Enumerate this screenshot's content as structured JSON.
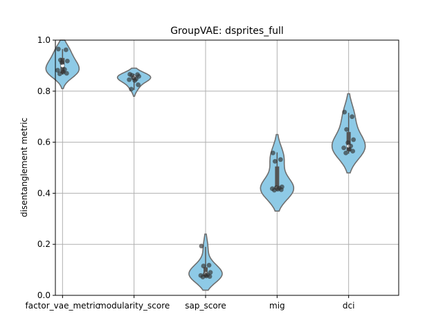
{
  "chart_data": {
    "type": "violin",
    "title": "GroupVAE: dsprites_full",
    "xlabel": "",
    "ylabel": "disentanglement metric",
    "ylim": [
      0.0,
      1.0
    ],
    "yticks": [
      0.0,
      0.2,
      0.4,
      0.6,
      0.8,
      1.0
    ],
    "ytick_labels": [
      "0.0",
      "0.2",
      "0.4",
      "0.6",
      "0.8",
      "1.0"
    ],
    "grid": true,
    "categories": [
      "factor_vae_metric",
      "modularity_score",
      "sap_score",
      "mig",
      "dci"
    ],
    "colors": {
      "violin_fill": "#8ecae6",
      "violin_edge": "#6e6e6e",
      "box": "#555555",
      "median": "#ffffff",
      "points": "#333333",
      "grid": "#b0b0b0"
    },
    "series": [
      {
        "category": "factor_vae_metric",
        "violin_range": [
          0.81,
          1.0
        ],
        "box": {
          "q1": 0.87,
          "median": 0.9,
          "q3": 0.93
        },
        "whiskers": [
          0.865,
          0.965
        ],
        "points": [
          0.965,
          0.962,
          0.922,
          0.918,
          0.912,
          0.885,
          0.882,
          0.875,
          0.87,
          0.868
        ]
      },
      {
        "category": "modularity_score",
        "violin_range": [
          0.78,
          0.89
        ],
        "box": {
          "q1": 0.845,
          "median": 0.855,
          "q3": 0.862
        },
        "whiskers": [
          0.805,
          0.868
        ],
        "points": [
          0.866,
          0.865,
          0.862,
          0.858,
          0.852,
          0.848,
          0.845,
          0.842,
          0.825,
          0.808
        ]
      },
      {
        "category": "sap_score",
        "violin_range": [
          0.02,
          0.24
        ],
        "box": {
          "q1": 0.075,
          "median": 0.085,
          "q3": 0.11
        },
        "whiskers": [
          0.07,
          0.19
        ],
        "points": [
          0.193,
          0.118,
          0.115,
          0.09,
          0.082,
          0.08,
          0.078,
          0.076,
          0.074,
          0.072
        ]
      },
      {
        "category": "mig",
        "violin_range": [
          0.33,
          0.63
        ],
        "box": {
          "q1": 0.415,
          "median": 0.42,
          "q3": 0.505
        },
        "whiskers": [
          0.41,
          0.56
        ],
        "points": [
          0.558,
          0.532,
          0.525,
          0.425,
          0.422,
          0.42,
          0.418,
          0.416,
          0.414,
          0.412
        ]
      },
      {
        "category": "dci",
        "violin_range": [
          0.48,
          0.79
        ],
        "box": {
          "q1": 0.565,
          "median": 0.585,
          "q3": 0.64
        },
        "whiskers": [
          0.555,
          0.715
        ],
        "points": [
          0.718,
          0.7,
          0.65,
          0.61,
          0.598,
          0.585,
          0.578,
          0.572,
          0.565,
          0.558
        ]
      }
    ]
  }
}
